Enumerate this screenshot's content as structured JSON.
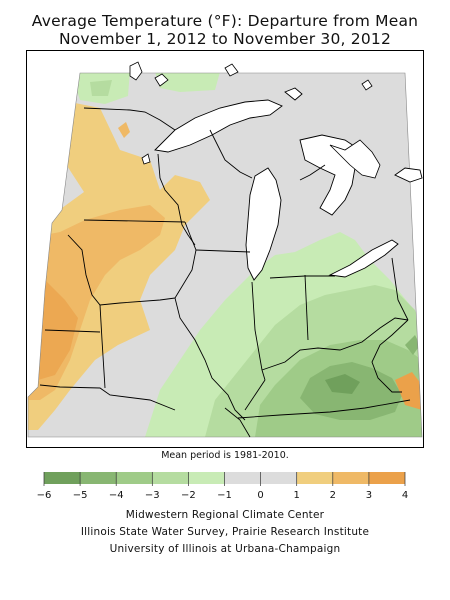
{
  "title_line1": "Average Temperature (°F): Departure from Mean",
  "title_line2": "November 1, 2012 to November 30, 2012",
  "footnote": "Mean period is 1981-2010.",
  "legend": {
    "ticks": [
      "-6",
      "-5",
      "-4",
      "-3",
      "-2",
      "-1",
      "0",
      "1",
      "2",
      "3",
      "4"
    ],
    "bins": [
      {
        "from": -6,
        "to": -5,
        "color": "#70a05c"
      },
      {
        "from": -5,
        "to": -4,
        "color": "#88b672"
      },
      {
        "from": -4,
        "to": -3,
        "color": "#9fcb88"
      },
      {
        "from": -3,
        "to": -2,
        "color": "#b5dca0"
      },
      {
        "from": -2,
        "to": -1,
        "color": "#c8ebb5"
      },
      {
        "from": -1,
        "to": 0,
        "color": "#dcdcdc"
      },
      {
        "from": 0,
        "to": 1,
        "color": "#dcdcdc"
      },
      {
        "from": 1,
        "to": 2,
        "color": "#f0ce7e"
      },
      {
        "from": 2,
        "to": 3,
        "color": "#efb966"
      },
      {
        "from": 3,
        "to": 4,
        "color": "#eba14a"
      }
    ]
  },
  "credits": [
    "Midwestern Regional Climate Center",
    "Illinois State Water Survey, Prairie Research Institute",
    "University of Illinois at Urbana-Champaign"
  ],
  "colors": {
    "neutral": "#dcdcdc",
    "water": "#ffffff",
    "border": "#000000"
  }
}
